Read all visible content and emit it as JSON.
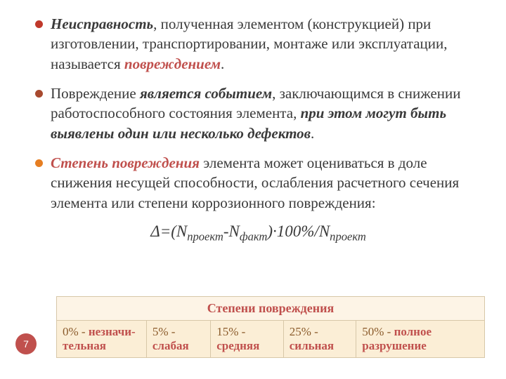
{
  "bullets": [
    {
      "style": "b-red",
      "parts": [
        {
          "cls": "bi",
          "t": "Неисправность"
        },
        {
          "cls": "",
          "t": ", полученная элементом (конструкцией) при изготовлении, транспортировании, монтаже или эксплуатации, называется "
        },
        {
          "cls": "bi-acc",
          "t": "повреждением"
        },
        {
          "cls": "",
          "t": "."
        }
      ]
    },
    {
      "style": "b-brown",
      "parts": [
        {
          "cls": "",
          "t": "Повреждение "
        },
        {
          "cls": "bi",
          "t": "является событием"
        },
        {
          "cls": "",
          "t": ", заключающимся в снижении работоспособного состояния элемента, "
        },
        {
          "cls": "bi",
          "t": "при этом могут быть выявлены один или несколько дефектов"
        },
        {
          "cls": "",
          "t": "."
        }
      ]
    },
    {
      "style": "b-orange",
      "parts": [
        {
          "cls": "bi-acc",
          "t": "Степень повреждения"
        },
        {
          "cls": "",
          "t": " элемента может оцениваться в доле снижения несущей способности, ослабления расчетного сечения элемента или степени коррозионного повреждения:"
        }
      ]
    }
  ],
  "formula": {
    "delta": "Δ",
    "eq": "=(N",
    "s1": "проект",
    "minus": "-N",
    "s2": "факт",
    "mid": ")·100%/N",
    "s3": "проект"
  },
  "table": {
    "header": "Степени повреждения",
    "cells": [
      {
        "pct": "0% - ",
        "lvl": "незначи-тельная"
      },
      {
        "pct": "5% - ",
        "lvl": "слабая"
      },
      {
        "pct": "15% - ",
        "lvl": "средняя"
      },
      {
        "pct": "25% - ",
        "lvl": "сильная"
      },
      {
        "pct": "50% - ",
        "lvl": "полное разрушение"
      }
    ],
    "col_widths": [
      "21%",
      "15%",
      "17%",
      "17%",
      "30%"
    ]
  },
  "page_number": "7",
  "colors": {
    "accent": "#c0504d",
    "table_header_bg": "#fdf4e6",
    "table_cell_bg": "#fbeed6",
    "table_border": "#d7c7a8",
    "bullet_red": "#c0392b",
    "bullet_brown": "#a84a2f",
    "bullet_orange": "#e67e22"
  }
}
